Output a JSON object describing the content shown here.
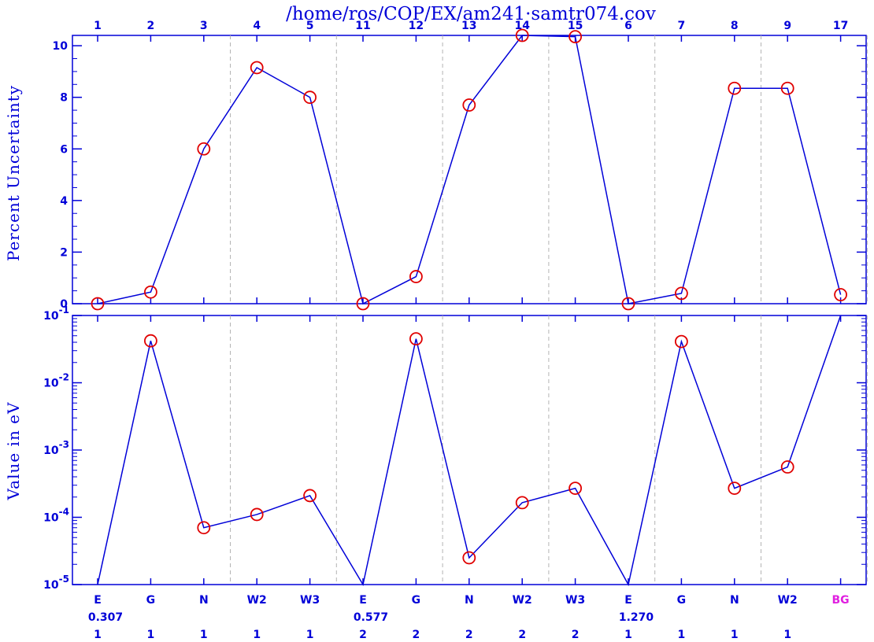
{
  "chart_data": [
    {
      "type": "line",
      "title": "/home/ros/COP/EX/am241·samtr074.cov",
      "ylabel": "Percent Uncertainty",
      "top_labels": [
        "1",
        "2",
        "3",
        "4",
        "5",
        "11",
        "12",
        "13",
        "14",
        "15",
        "6",
        "7",
        "8",
        "9",
        "17"
      ],
      "ylim": [
        0,
        10.4
      ],
      "yticks": [
        "0",
        "2",
        "4",
        "6",
        "8",
        "10"
      ],
      "ytick_values": [
        0,
        2,
        4,
        6,
        8,
        10
      ],
      "series": [
        {
          "values": [
            0.0,
            0.45,
            6.0,
            9.15,
            8.0,
            0.0,
            1.05,
            7.7,
            10.4,
            10.35,
            0.0,
            0.4,
            8.35,
            8.35,
            0.35
          ]
        }
      ],
      "group_separators_after": [
        2,
        4,
        6,
        8,
        10,
        12,
        14
      ],
      "colors": {
        "line": "#0000d8",
        "marker": "#e00000",
        "separator": "#b4b4b4"
      }
    },
    {
      "type": "line",
      "ylabel": "Value in eV",
      "yscale": "log",
      "ylim": [
        1e-05,
        0.1
      ],
      "ytick_labels": [
        {
          "base": "10",
          "exp": "-5",
          "value": 1e-05
        },
        {
          "base": "10",
          "exp": "-4",
          "value": 0.0001
        },
        {
          "base": "10",
          "exp": "-3",
          "value": 0.001
        },
        {
          "base": "10",
          "exp": "-2",
          "value": 0.01
        },
        {
          "base": "10",
          "exp": "-1",
          "value": 0.1
        }
      ],
      "series": [
        {
          "values": [
            1e-05,
            0.042,
            7e-05,
            0.00011,
            0.00021,
            1e-05,
            0.045,
            2.5e-05,
            0.000165,
            0.00027,
            1e-05,
            0.041,
            0.00027,
            0.00056,
            0.1
          ],
          "markers": [
            false,
            true,
            true,
            true,
            true,
            false,
            true,
            true,
            true,
            true,
            false,
            true,
            true,
            true,
            false
          ]
        }
      ],
      "x_labels": [
        {
          "name": "E",
          "value": "0.307",
          "group": "1"
        },
        {
          "name": "G",
          "value": "",
          "group": "1"
        },
        {
          "name": "N",
          "value": "",
          "group": "1"
        },
        {
          "name": "W2",
          "value": "",
          "group": "1"
        },
        {
          "name": "W3",
          "value": "",
          "group": "1"
        },
        {
          "name": "E",
          "value": "0.577",
          "group": "2"
        },
        {
          "name": "G",
          "value": "",
          "group": "2"
        },
        {
          "name": "N",
          "value": "",
          "group": "2"
        },
        {
          "name": "W2",
          "value": "",
          "group": "2"
        },
        {
          "name": "W3",
          "value": "",
          "group": "2"
        },
        {
          "name": "E",
          "value": "1.270",
          "group": "1"
        },
        {
          "name": "G",
          "value": "",
          "group": "1"
        },
        {
          "name": "N",
          "value": "",
          "group": "1"
        },
        {
          "name": "W2",
          "value": "",
          "group": "1"
        },
        {
          "name": "BG",
          "value": "",
          "group": "",
          "color": "#e020e0"
        }
      ]
    }
  ]
}
